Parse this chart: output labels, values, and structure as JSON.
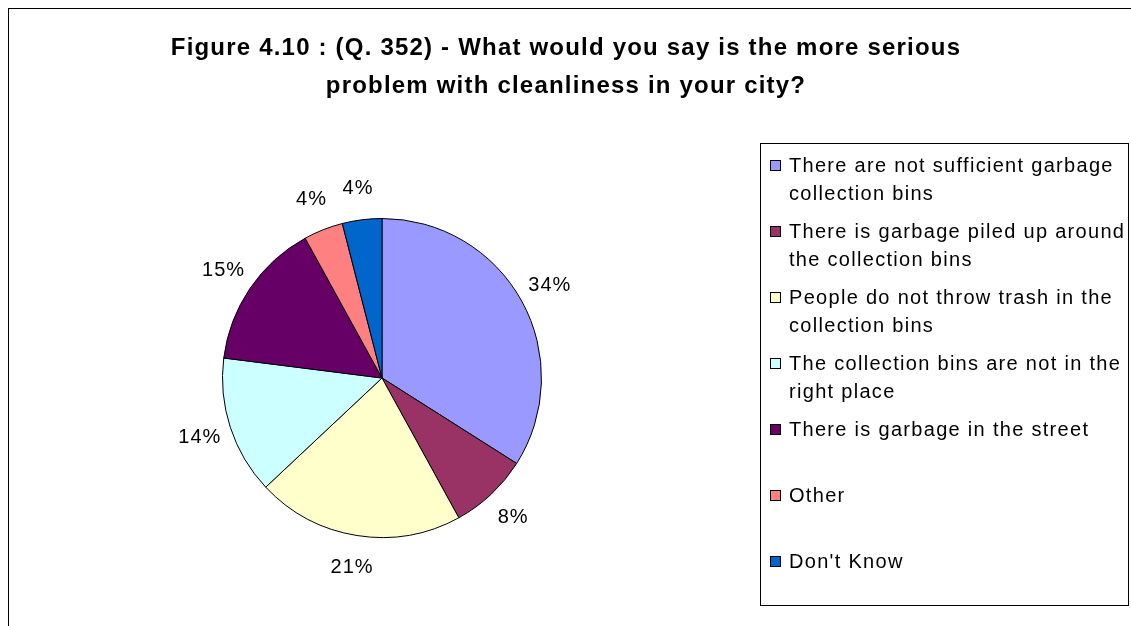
{
  "chart_data": {
    "type": "pie",
    "title": "Figure 4.10 : (Q. 352) - What would you say is the more serious problem with cleanliness in your city?",
    "categories": [
      "There are not sufficient garbage collection bins",
      "There is garbage piled up around the collection bins",
      "People do not throw trash in the collection bins",
      "The collection bins are not in the right place",
      "There is garbage in the street",
      "Other",
      "Don't Know"
    ],
    "values": [
      34,
      8,
      21,
      14,
      15,
      4,
      4
    ],
    "colors": [
      "#9999ff",
      "#993366",
      "#ffffcc",
      "#ccffff",
      "#660066",
      "#ff8080",
      "#0066cc"
    ],
    "value_labels": [
      "34%",
      "8%",
      "21%",
      "14%",
      "15%",
      "4%",
      "4%"
    ],
    "legend": "right"
  }
}
